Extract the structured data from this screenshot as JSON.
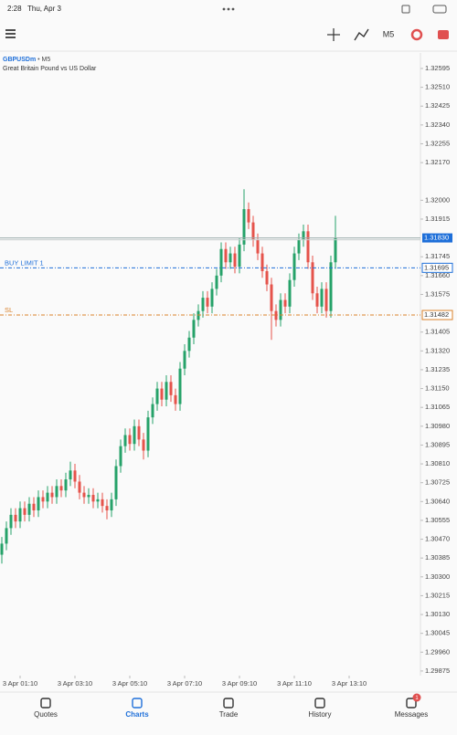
{
  "status_bar": {
    "time": "2:28",
    "date": "Thu, Apr 3"
  },
  "toolbar": {
    "timeframe": "M5"
  },
  "chart_data": {
    "type": "candlestick",
    "symbol": "GBPUSDm",
    "separator": "•",
    "timeframe": "M5",
    "description": "Great Britain Pound vs US Dollar",
    "up_color": "#26a269",
    "down_color": "#e5534b",
    "candles": {
      "open": [
        1.304,
        1.3045,
        1.3052,
        1.3058,
        1.3055,
        1.3061,
        1.3058,
        1.3063,
        1.306,
        1.3066,
        1.3064,
        1.3068,
        1.3066,
        1.3071,
        1.3069,
        1.3074,
        1.3078,
        1.3073,
        1.3068,
        1.3066,
        1.3067,
        1.3064,
        1.3065,
        1.3062,
        1.306,
        1.3065,
        1.308,
        1.3089,
        1.3094,
        1.309,
        1.3098,
        1.3092,
        1.3087,
        1.3102,
        1.3108,
        1.3115,
        1.311,
        1.3118,
        1.3112,
        1.3108,
        1.3124,
        1.3132,
        1.3138,
        1.3146,
        1.315,
        1.3156,
        1.3152,
        1.316,
        1.3166,
        1.3178,
        1.3172,
        1.3176,
        1.317,
        1.318,
        1.3196,
        1.319,
        1.3182,
        1.3176,
        1.3168,
        1.3162,
        1.315,
        1.3146,
        1.3155,
        1.3152,
        1.3164,
        1.3176,
        1.3182,
        1.3186,
        1.3172,
        1.3158,
        1.3152,
        1.316,
        1.315,
        1.3172
      ],
      "high": [
        1.3048,
        1.3055,
        1.3061,
        1.3061,
        1.3064,
        1.3064,
        1.3066,
        1.3066,
        1.3069,
        1.3069,
        1.3071,
        1.3071,
        1.3074,
        1.3074,
        1.3077,
        1.3082,
        1.3081,
        1.3076,
        1.3071,
        1.307,
        1.307,
        1.3068,
        1.3068,
        1.3065,
        1.3068,
        1.3083,
        1.3092,
        1.3097,
        1.3097,
        1.3101,
        1.3101,
        1.3095,
        1.3105,
        1.3111,
        1.3118,
        1.3118,
        1.3121,
        1.3121,
        1.3115,
        1.3127,
        1.3135,
        1.3141,
        1.3149,
        1.3153,
        1.3159,
        1.3159,
        1.3163,
        1.3169,
        1.3181,
        1.3181,
        1.3179,
        1.3179,
        1.3183,
        1.3205,
        1.3199,
        1.3193,
        1.3185,
        1.3179,
        1.3171,
        1.3165,
        1.3153,
        1.3158,
        1.3158,
        1.3167,
        1.3179,
        1.3185,
        1.3189,
        1.3189,
        1.3175,
        1.3161,
        1.3163,
        1.3163,
        1.3175,
        1.3193
      ],
      "low": [
        1.3036,
        1.3042,
        1.3049,
        1.3052,
        1.3052,
        1.3055,
        1.3055,
        1.3057,
        1.3057,
        1.3061,
        1.3061,
        1.3063,
        1.3063,
        1.3066,
        1.3066,
        1.3071,
        1.307,
        1.3065,
        1.3063,
        1.3063,
        1.3061,
        1.3061,
        1.3059,
        1.3056,
        1.3057,
        1.3062,
        1.3077,
        1.3086,
        1.3087,
        1.3087,
        1.3089,
        1.3083,
        1.3084,
        1.3099,
        1.3105,
        1.3107,
        1.3107,
        1.3109,
        1.3105,
        1.3105,
        1.3121,
        1.3129,
        1.3135,
        1.3143,
        1.3147,
        1.3149,
        1.3149,
        1.3157,
        1.3163,
        1.3169,
        1.3169,
        1.3167,
        1.3167,
        1.3177,
        1.3187,
        1.3179,
        1.3173,
        1.3165,
        1.3159,
        1.3137,
        1.3143,
        1.3143,
        1.3149,
        1.3149,
        1.3161,
        1.3173,
        1.3179,
        1.3169,
        1.3155,
        1.3149,
        1.3149,
        1.3147,
        1.3147,
        1.3169
      ],
      "close": [
        1.3045,
        1.3052,
        1.3058,
        1.3055,
        1.3061,
        1.3058,
        1.3063,
        1.306,
        1.3066,
        1.3064,
        1.3068,
        1.3066,
        1.3071,
        1.3069,
        1.3074,
        1.3078,
        1.3073,
        1.3068,
        1.3066,
        1.3067,
        1.3064,
        1.3065,
        1.3062,
        1.306,
        1.3065,
        1.308,
        1.3089,
        1.3094,
        1.309,
        1.3098,
        1.3092,
        1.3087,
        1.3102,
        1.3108,
        1.3115,
        1.311,
        1.3118,
        1.3112,
        1.3108,
        1.3124,
        1.3132,
        1.3138,
        1.3146,
        1.315,
        1.3156,
        1.3152,
        1.316,
        1.3166,
        1.3178,
        1.3172,
        1.3176,
        1.317,
        1.318,
        1.3196,
        1.319,
        1.3182,
        1.3176,
        1.3168,
        1.3162,
        1.315,
        1.3146,
        1.3155,
        1.3152,
        1.3164,
        1.3176,
        1.3182,
        1.3186,
        1.3172,
        1.3158,
        1.3152,
        1.316,
        1.315,
        1.3172,
        1.3183
      ]
    },
    "xlim": [
      -0.4,
      91.6
    ],
    "xticks": [
      {
        "value": 4,
        "label": "3 Apr 01:10"
      },
      {
        "value": 16,
        "label": "3 Apr 03:10"
      },
      {
        "value": 28,
        "label": "3 Apr 05:10"
      },
      {
        "value": 40,
        "label": "3 Apr 07:10"
      },
      {
        "value": 52,
        "label": "3 Apr 09:10"
      },
      {
        "value": 64,
        "label": "3 Apr 11:10"
      },
      {
        "value": 76,
        "label": "3 Apr 13:10"
      }
    ],
    "ylim": [
      1.29854,
      1.32665
    ],
    "yticks": [
      1.32595,
      {
        "value": 1.3251,
        "label": "1.32510"
      },
      1.32425,
      {
        "value": 1.3234,
        "label": "1.32340"
      },
      1.32255,
      {
        "value": 1.3217,
        "label": "1.32170"
      },
      {
        "value": 1.32,
        "label": "1.32000"
      },
      1.31915,
      1.31745,
      {
        "value": 1.3166,
        "label": "1.31660"
      },
      1.31575,
      1.31405,
      {
        "value": 1.3132,
        "label": "1.31320"
      },
      1.31235,
      {
        "value": 1.3115,
        "label": "1.31150"
      },
      1.31065,
      {
        "value": 1.3098,
        "label": "1.30980"
      },
      1.30895,
      {
        "value": 1.3081,
        "label": "1.30810"
      },
      1.30725,
      {
        "value": 1.3064,
        "label": "1.30640"
      },
      1.30555,
      {
        "value": 1.3047,
        "label": "1.30470"
      },
      1.30385,
      {
        "value": 1.303,
        "label": "1.30300"
      },
      1.30215,
      {
        "value": 1.3013,
        "label": "1.30130"
      },
      1.30045,
      {
        "value": 1.2996,
        "label": "1.29960"
      },
      1.29875
    ],
    "current_price": {
      "value": 1.3183,
      "label": "1.31830",
      "color": "#1e6fd9"
    },
    "levels": [
      {
        "name": "BUY LIMIT 1",
        "value": 1.31695,
        "color": "#1e6fd9"
      },
      {
        "name": "SL",
        "value": 1.31482,
        "color": "#d9822b"
      }
    ]
  },
  "nav": {
    "items": [
      "Quotes",
      "Charts",
      "Trade",
      "History",
      "Messages"
    ],
    "active": 1,
    "badge": "1"
  }
}
